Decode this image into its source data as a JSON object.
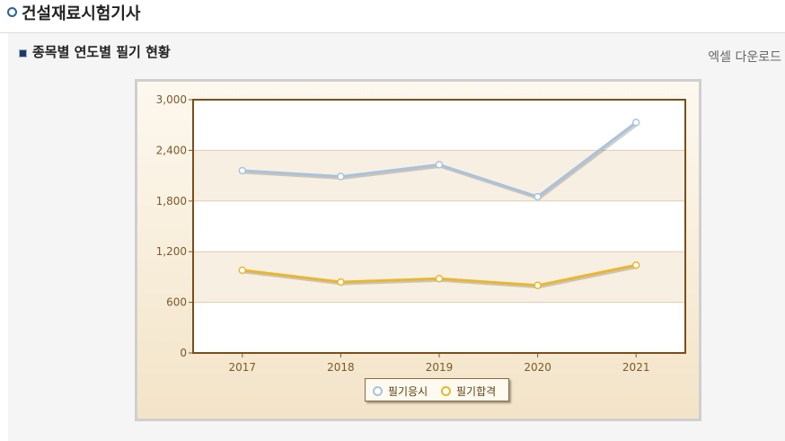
{
  "header": {
    "title": "건설재료시험기사"
  },
  "section": {
    "title": "종목별 연도별 필기 현황",
    "excel_label": "엑셀 다운로드"
  },
  "chart_data": {
    "type": "line",
    "title": "",
    "xlabel": "",
    "ylabel": "",
    "categories": [
      "2017",
      "2018",
      "2019",
      "2020",
      "2021"
    ],
    "ylim": [
      0,
      3000
    ],
    "yticks": [
      "0",
      "600",
      "1,200",
      "1,800",
      "2,400",
      "3,000"
    ],
    "ytick_values": [
      0,
      600,
      1200,
      1800,
      2400,
      3000
    ],
    "grid": true,
    "legend_position": "bottom",
    "series": [
      {
        "name": "필기응시",
        "color": "#a9c3db",
        "values": [
          2160,
          2090,
          2230,
          1850,
          2730
        ]
      },
      {
        "name": "필기합격",
        "color": "#e8b72e",
        "values": [
          980,
          840,
          880,
          800,
          1040
        ]
      }
    ]
  }
}
